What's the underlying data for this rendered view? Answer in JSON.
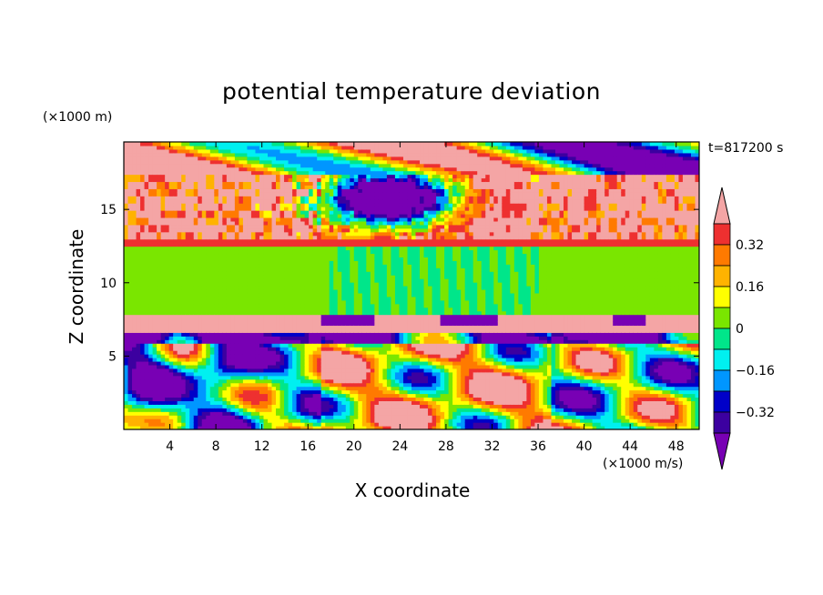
{
  "chart_data": {
    "type": "heatmap",
    "title": "potential temperature deviation",
    "xlabel": "X coordinate",
    "ylabel": "Z coordinate",
    "x_unit": "(×1000 m/s)",
    "y_unit": "(×1000 m)",
    "annotation": "t=817200 s",
    "xlim": [
      0,
      50
    ],
    "ylim": [
      0,
      19.6
    ],
    "x_ticks": [
      "4",
      "8",
      "12",
      "16",
      "20",
      "24",
      "28",
      "32",
      "36",
      "40",
      "44",
      "48"
    ],
    "y_ticks": [
      "5",
      "10",
      "15"
    ],
    "colorbar": {
      "labels": [
        "0.32",
        "0.16",
        "0",
        "-0.16",
        "-0.32"
      ],
      "label_levels": [
        0.32,
        0.16,
        0,
        -0.16,
        -0.32
      ],
      "bands": [
        {
          "lo": 0.4,
          "hi": null,
          "color": "#f4a5a5"
        },
        {
          "lo": 0.32,
          "hi": 0.4,
          "color": "#ee3030"
        },
        {
          "lo": 0.24,
          "hi": 0.32,
          "color": "#ff7a00"
        },
        {
          "lo": 0.16,
          "hi": 0.24,
          "color": "#ffb300"
        },
        {
          "lo": 0.08,
          "hi": 0.16,
          "color": "#ffff00"
        },
        {
          "lo": 0.0,
          "hi": 0.08,
          "color": "#7ae600"
        },
        {
          "lo": -0.08,
          "hi": 0.0,
          "color": "#00e68a"
        },
        {
          "lo": -0.16,
          "hi": -0.08,
          "color": "#00f0f0"
        },
        {
          "lo": -0.24,
          "hi": -0.16,
          "color": "#0096ff"
        },
        {
          "lo": -0.32,
          "hi": -0.24,
          "color": "#0000c8"
        },
        {
          "lo": -0.4,
          "hi": -0.32,
          "color": "#3c00a0"
        },
        {
          "lo": null,
          "hi": -0.4,
          "color": "#7800b4"
        }
      ]
    },
    "regions": [
      {
        "z": [
          17.5,
          19.6
        ],
        "description_value": "mixed -0.4 and >0.4"
      },
      {
        "z": [
          12.5,
          17.5
        ],
        "description_value": ">0.4 with patches <-0.4"
      },
      {
        "z": [
          7.8,
          12.8
        ],
        "description_value": "0 to 0.08"
      },
      {
        "z": [
          6.5,
          7.8
        ],
        "description_value": ">0.4"
      },
      {
        "z": [
          0,
          6.5
        ],
        "description_value": "mixed -0.4 to 0.4"
      }
    ]
  }
}
